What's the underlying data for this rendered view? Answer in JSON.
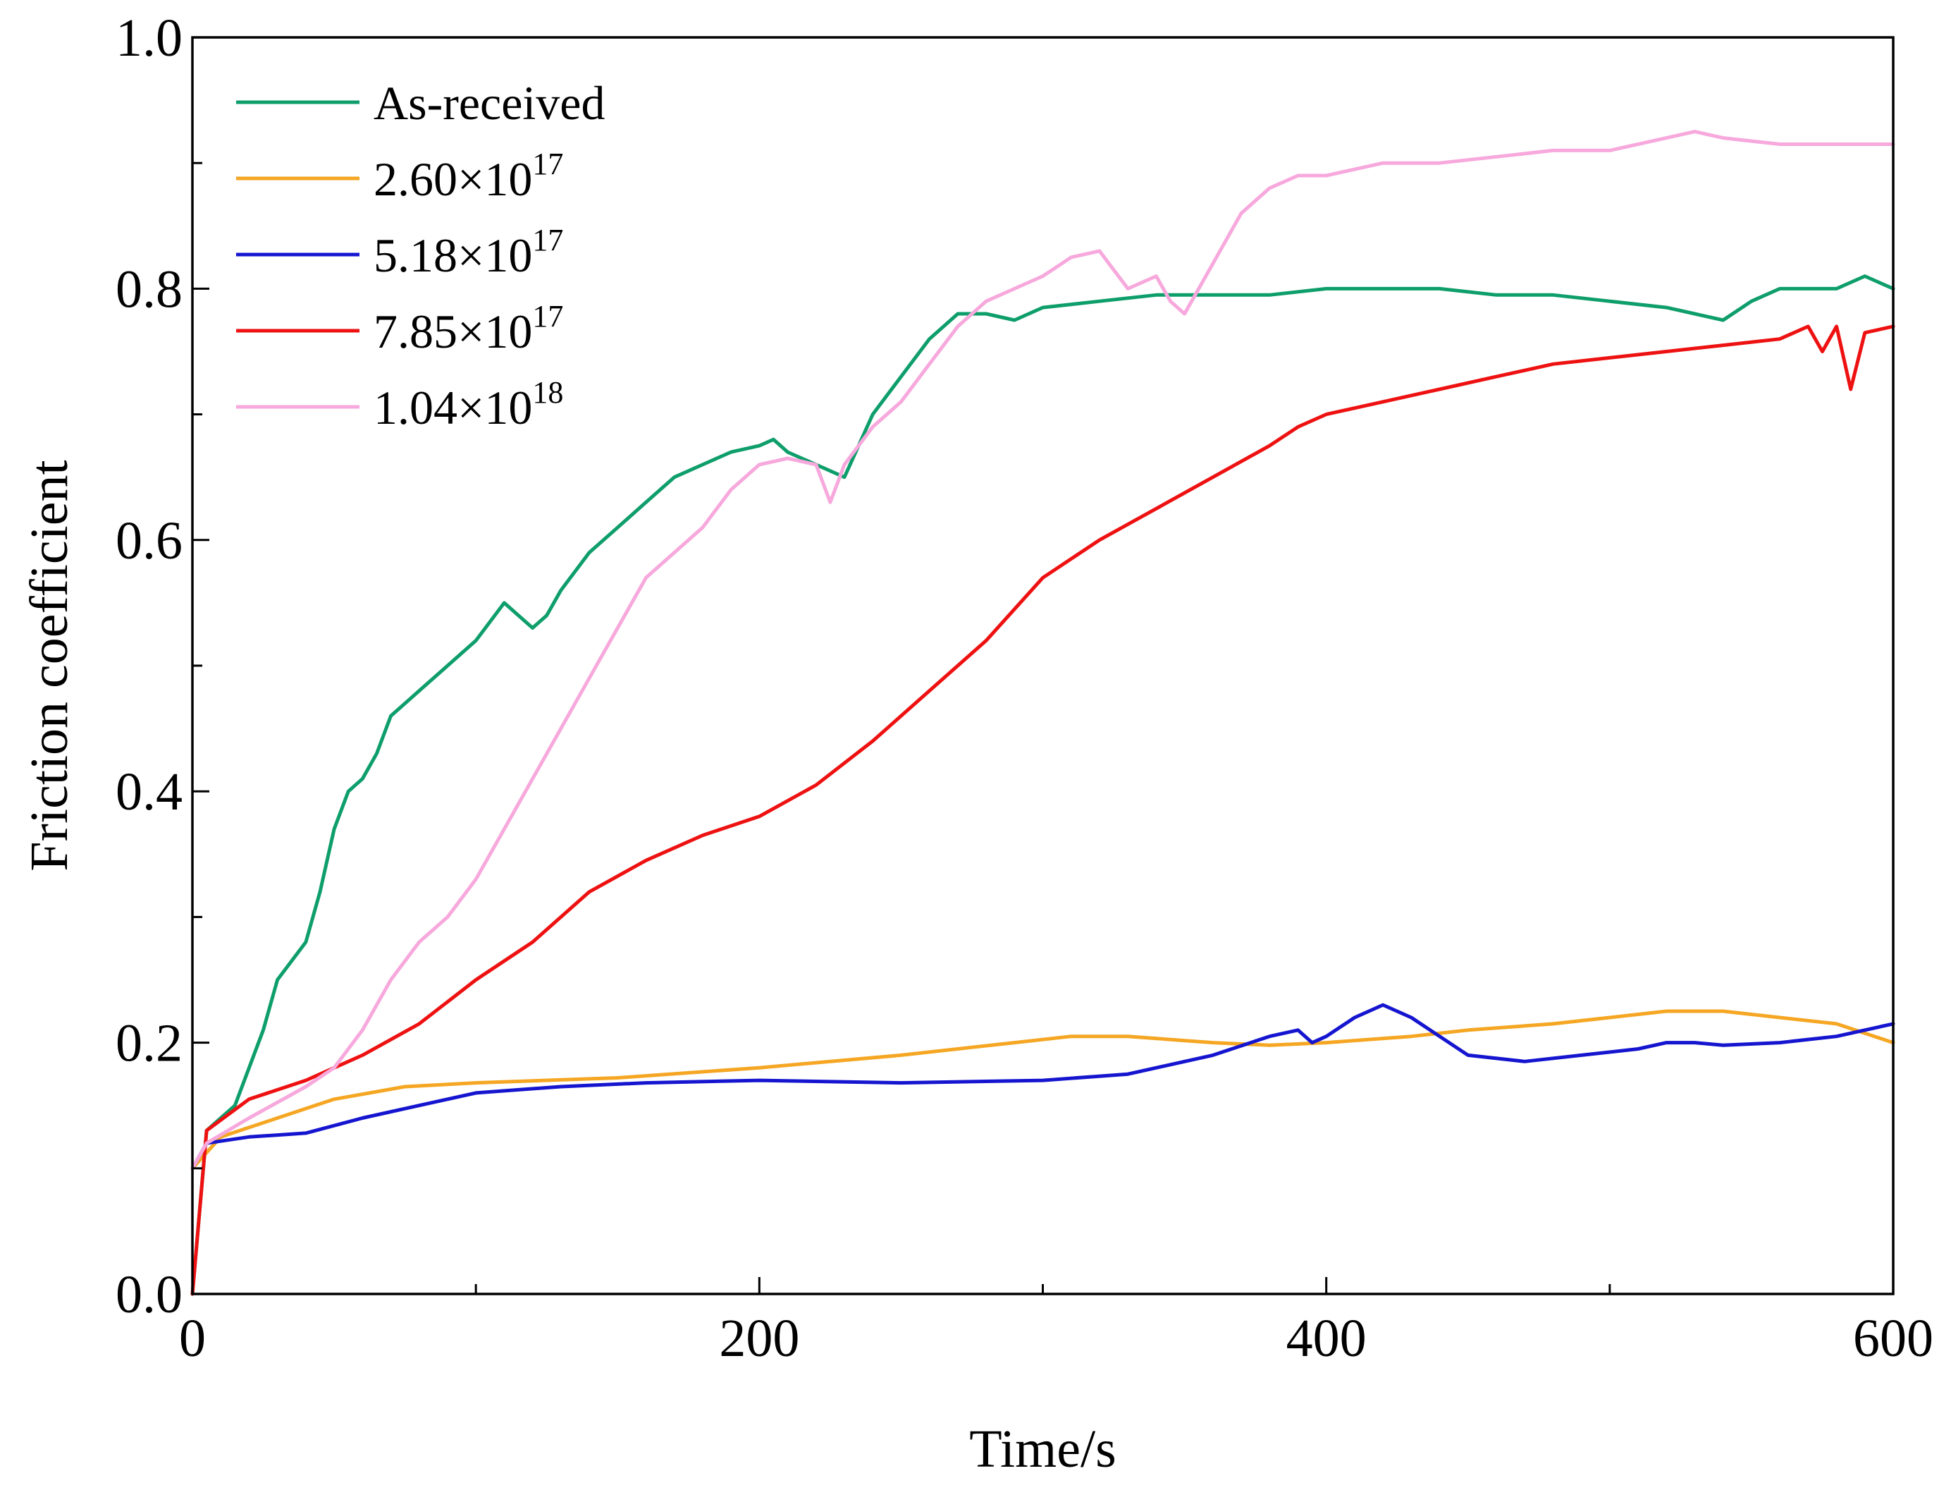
{
  "chart_data": {
    "type": "line",
    "title": "",
    "xlabel": "Time/s",
    "ylabel": "Friction coefficient",
    "xlim": [
      0,
      600
    ],
    "ylim": [
      0.0,
      1.0
    ],
    "x_ticks": [
      0,
      200,
      400,
      600
    ],
    "x_tick_labels": [
      "0",
      "200",
      "400",
      "600"
    ],
    "y_ticks": [
      0.0,
      0.2,
      0.4,
      0.6,
      0.8,
      1.0
    ],
    "y_tick_labels": [
      "0.0",
      "0.2",
      "0.4",
      "0.6",
      "0.8",
      "1.0"
    ],
    "grid": false,
    "legend_position": "top-left",
    "series": [
      {
        "name": "As-received",
        "legend_base": "",
        "legend_exp": "",
        "color": "#0e9e6b",
        "x": [
          0,
          5,
          15,
          25,
          30,
          40,
          45,
          50,
          55,
          60,
          65,
          70,
          75,
          80,
          90,
          100,
          110,
          115,
          120,
          125,
          130,
          140,
          150,
          160,
          170,
          180,
          190,
          200,
          205,
          210,
          220,
          230,
          240,
          250,
          260,
          270,
          280,
          290,
          300,
          320,
          340,
          360,
          380,
          400,
          420,
          440,
          460,
          480,
          500,
          520,
          530,
          540,
          550,
          560,
          570,
          580,
          590,
          600
        ],
        "y": [
          0.0,
          0.13,
          0.15,
          0.21,
          0.25,
          0.28,
          0.32,
          0.37,
          0.4,
          0.41,
          0.43,
          0.46,
          0.47,
          0.48,
          0.5,
          0.52,
          0.55,
          0.54,
          0.53,
          0.54,
          0.56,
          0.59,
          0.61,
          0.63,
          0.65,
          0.66,
          0.67,
          0.675,
          0.68,
          0.67,
          0.66,
          0.65,
          0.7,
          0.73,
          0.76,
          0.78,
          0.78,
          0.775,
          0.785,
          0.79,
          0.795,
          0.795,
          0.795,
          0.8,
          0.8,
          0.8,
          0.795,
          0.795,
          0.79,
          0.785,
          0.78,
          0.775,
          0.79,
          0.8,
          0.8,
          0.8,
          0.81,
          0.8
        ]
      },
      {
        "name": "2.60×10^17",
        "legend_base": "2.60×10",
        "legend_exp": "17",
        "color": "#f5a623",
        "x": [
          0,
          10,
          30,
          50,
          75,
          100,
          150,
          200,
          250,
          290,
          310,
          330,
          360,
          380,
          400,
          430,
          450,
          480,
          500,
          520,
          540,
          560,
          580,
          600
        ],
        "y": [
          0.1,
          0.125,
          0.14,
          0.155,
          0.165,
          0.168,
          0.172,
          0.18,
          0.19,
          0.2,
          0.205,
          0.205,
          0.2,
          0.198,
          0.2,
          0.205,
          0.21,
          0.215,
          0.22,
          0.225,
          0.225,
          0.22,
          0.215,
          0.2
        ]
      },
      {
        "name": "5.18×10^17",
        "legend_base": "5.18×10",
        "legend_exp": "17",
        "color": "#1515d0",
        "x": [
          0,
          5,
          20,
          40,
          60,
          80,
          100,
          130,
          160,
          200,
          250,
          300,
          330,
          360,
          380,
          390,
          395,
          400,
          410,
          420,
          430,
          440,
          450,
          470,
          490,
          510,
          520,
          530,
          540,
          560,
          580,
          590,
          600
        ],
        "y": [
          0.1,
          0.12,
          0.125,
          0.128,
          0.14,
          0.15,
          0.16,
          0.165,
          0.168,
          0.17,
          0.168,
          0.17,
          0.175,
          0.19,
          0.205,
          0.21,
          0.2,
          0.205,
          0.22,
          0.23,
          0.22,
          0.205,
          0.19,
          0.185,
          0.19,
          0.195,
          0.2,
          0.2,
          0.198,
          0.2,
          0.205,
          0.21,
          0.215
        ]
      },
      {
        "name": "7.85×10^17",
        "legend_base": "7.85×10",
        "legend_exp": "17",
        "color": "#ee1111",
        "x": [
          0,
          5,
          20,
          40,
          60,
          80,
          100,
          120,
          140,
          160,
          180,
          200,
          220,
          240,
          260,
          280,
          300,
          320,
          340,
          360,
          380,
          390,
          400,
          420,
          440,
          460,
          480,
          500,
          520,
          540,
          560,
          570,
          575,
          580,
          585,
          590,
          600
        ],
        "y": [
          0.0,
          0.13,
          0.155,
          0.17,
          0.19,
          0.215,
          0.25,
          0.28,
          0.32,
          0.345,
          0.365,
          0.38,
          0.405,
          0.44,
          0.48,
          0.52,
          0.57,
          0.6,
          0.625,
          0.65,
          0.675,
          0.69,
          0.7,
          0.71,
          0.72,
          0.73,
          0.74,
          0.745,
          0.75,
          0.755,
          0.76,
          0.77,
          0.75,
          0.77,
          0.72,
          0.765,
          0.77
        ]
      },
      {
        "name": "1.04×10^18",
        "legend_base": "1.04×10",
        "legend_exp": "18",
        "color": "#f7a8dc",
        "x": [
          0,
          5,
          20,
          40,
          50,
          60,
          70,
          80,
          90,
          100,
          110,
          120,
          130,
          140,
          150,
          160,
          170,
          180,
          190,
          200,
          210,
          220,
          225,
          230,
          240,
          250,
          260,
          270,
          280,
          290,
          300,
          310,
          320,
          330,
          340,
          345,
          350,
          360,
          370,
          380,
          390,
          400,
          420,
          440,
          460,
          480,
          500,
          520,
          530,
          540,
          560,
          580,
          600
        ],
        "y": [
          0.1,
          0.12,
          0.14,
          0.165,
          0.18,
          0.21,
          0.25,
          0.28,
          0.3,
          0.33,
          0.37,
          0.41,
          0.45,
          0.49,
          0.53,
          0.57,
          0.59,
          0.61,
          0.64,
          0.66,
          0.665,
          0.66,
          0.63,
          0.66,
          0.69,
          0.71,
          0.74,
          0.77,
          0.79,
          0.8,
          0.81,
          0.825,
          0.83,
          0.8,
          0.81,
          0.79,
          0.78,
          0.82,
          0.86,
          0.88,
          0.89,
          0.89,
          0.9,
          0.9,
          0.905,
          0.91,
          0.91,
          0.92,
          0.925,
          0.92,
          0.915,
          0.915,
          0.915
        ]
      }
    ]
  }
}
